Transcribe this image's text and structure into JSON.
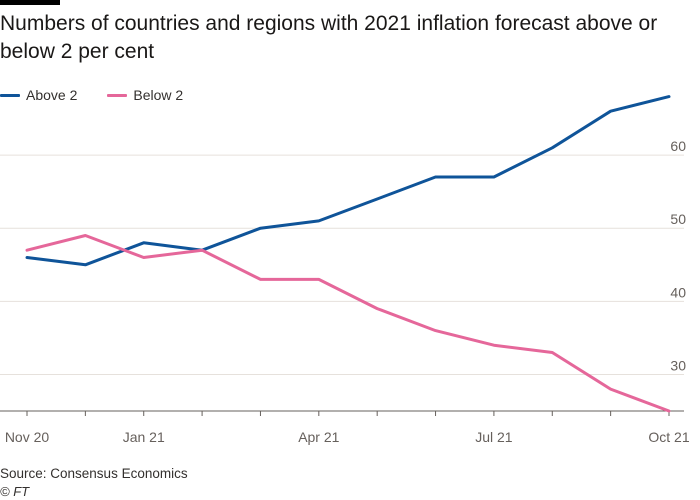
{
  "header": {
    "title": "Numbers of countries and regions with 2021 inflation forecast above or below 2 per cent"
  },
  "footer": {
    "source": "Source: Consensus Economics",
    "credit": "© FT"
  },
  "colors": {
    "above": "#0f5499",
    "below": "#e5679a",
    "grid": "#e6e1dc",
    "axis": "#66605c",
    "brand_bar": "#000000"
  },
  "chart_data": {
    "type": "line",
    "title": "Numbers of countries and regions with 2021 inflation forecast above or below 2 per cent",
    "x": [
      "Nov 20",
      "Dec 20",
      "Jan 21",
      "Feb 21",
      "Mar 21",
      "Apr 21",
      "May 21",
      "Jun 21",
      "Jul 21",
      "Aug 21",
      "Sep 21",
      "Oct 21"
    ],
    "x_tick_labels": [
      "Nov 20",
      "Jan 21",
      "Apr 21",
      "Jul 21",
      "Oct 21"
    ],
    "series": [
      {
        "name": "Above 2",
        "color": "#0f5499",
        "values": [
          46,
          45,
          48,
          47,
          50,
          51,
          54,
          57,
          57,
          61,
          66,
          68
        ]
      },
      {
        "name": "Below 2",
        "color": "#e5679a",
        "values": [
          47,
          49,
          46,
          47,
          43,
          43,
          39,
          36,
          34,
          33,
          28,
          25
        ]
      }
    ],
    "yticks": [
      30,
      40,
      50,
      60
    ],
    "ylim": [
      25,
      70
    ],
    "grid": true,
    "y_axis_side": "right",
    "legend": "top-left"
  }
}
